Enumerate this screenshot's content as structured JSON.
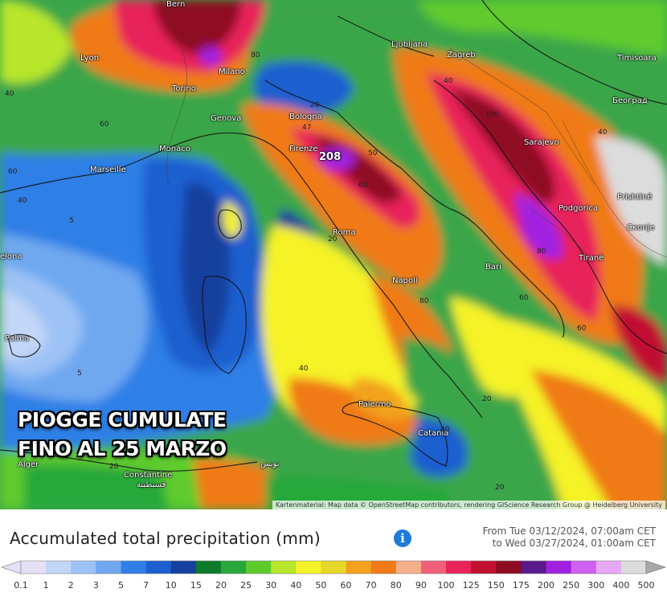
{
  "headline": {
    "line1": "PIOGGE CUMULATE",
    "line2": "FINO AL 25 MARZO"
  },
  "map": {
    "attribution": "Kartenmaterial: Map data © OpenStreetMap contributors, rendering GIScience Research Group @ Heidelberg University",
    "max_value_label": "208",
    "cities": {
      "bern": "Bern",
      "lyon": "Lyon",
      "torino": "Torino",
      "milano": "Milano",
      "genova": "Genova",
      "monaco": "Monaco",
      "marseille": "Marseille",
      "bologna": "Bologna",
      "firenze": "Firenze",
      "ljubljana": "Ljubljana",
      "zagreb": "Zagreb",
      "timisoara": "Timisoara",
      "beograd": "Београд",
      "sarajevo": "Sarajevo",
      "podgorica": "Podgorica",
      "pristina": "Prishtinë",
      "skopje": "Скопје",
      "tirane": "Tiranë",
      "roma": "Roma",
      "napoli": "Napoli",
      "bari": "Bari",
      "palermo": "Palermo",
      "catania": "Catania",
      "palma": "Palma",
      "barcelona": "elona",
      "alger": "Alger",
      "constantine": "Constantine",
      "constantine_ar": "قسنطينة",
      "tunis": "تونس"
    },
    "contours": [
      "80",
      "40",
      "60",
      "60",
      "40",
      "5",
      "5",
      "40",
      "40",
      "100",
      "40",
      "50",
      "60",
      "80",
      "60",
      "60",
      "80",
      "20",
      "20",
      "20",
      "40",
      "20",
      "20",
      "47"
    ]
  },
  "legend": {
    "title": "Accumulated total precipitation (mm)",
    "info_icon": "info-icon",
    "period_from": "From Tue 03/12/2024, 07:00am CET",
    "period_to": "to Wed 03/27/2024, 01:00am CET",
    "unit": "mm",
    "scale": [
      {
        "label": "0.1",
        "color": "#e6e0f5"
      },
      {
        "label": "1",
        "color": "#c2d6f7"
      },
      {
        "label": "2",
        "color": "#9dc2f5"
      },
      {
        "label": "3",
        "color": "#6fa8f0"
      },
      {
        "label": "5",
        "color": "#2f7fe6"
      },
      {
        "label": "7",
        "color": "#1e5fcf"
      },
      {
        "label": "10",
        "color": "#15409e"
      },
      {
        "label": "15",
        "color": "#0d7a2a"
      },
      {
        "label": "20",
        "color": "#28a83a"
      },
      {
        "label": "25",
        "color": "#5ecb2d"
      },
      {
        "label": "30",
        "color": "#b7e62a"
      },
      {
        "label": "40",
        "color": "#f5f228"
      },
      {
        "label": "50",
        "color": "#e8d72a"
      },
      {
        "label": "60",
        "color": "#f2a21c"
      },
      {
        "label": "70",
        "color": "#f07a18"
      },
      {
        "label": "80",
        "color": "#f5b08a"
      },
      {
        "label": "90",
        "color": "#f0607a"
      },
      {
        "label": "100",
        "color": "#e8245a"
      },
      {
        "label": "125",
        "color": "#c21030"
      },
      {
        "label": "150",
        "color": "#8e0b24"
      },
      {
        "label": "175",
        "color": "#5a1a8c"
      },
      {
        "label": "200",
        "color": "#a020e0"
      },
      {
        "label": "250",
        "color": "#d060f0"
      },
      {
        "label": "300",
        "color": "#e8a8f5"
      },
      {
        "label": "400",
        "color": "#dcdcdc"
      },
      {
        "label": "500",
        "color": "#a8a8a8"
      }
    ]
  }
}
